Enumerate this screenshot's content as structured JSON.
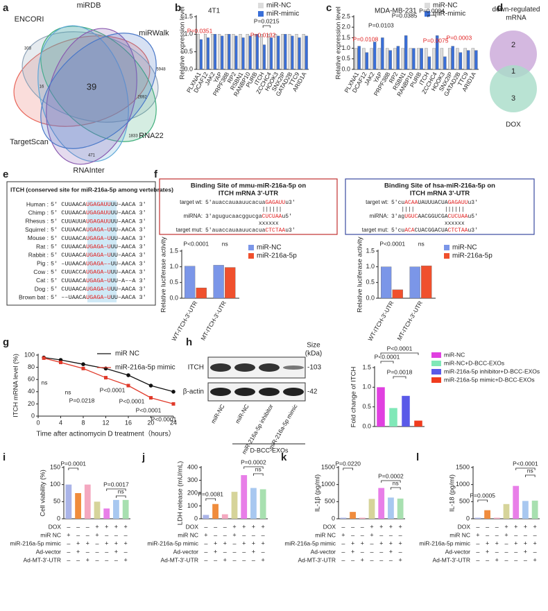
{
  "panel_letters": [
    "a",
    "b",
    "c",
    "d",
    "e",
    "f",
    "g",
    "h",
    "i",
    "j",
    "k",
    "l"
  ],
  "venn_a": {
    "sets": [
      "ENCORI",
      "miRDB",
      "miRWalk",
      "TargetScan",
      "RNAInter",
      "RNA22"
    ],
    "colors": [
      "#e8665a",
      "#8fa3b8",
      "#3fae7a",
      "#5fa8d8",
      "#8a5bb0",
      "#4a78c8"
    ],
    "center": 39,
    "counts": [
      303,
      5948,
      2692,
      1833,
      471,
      16
    ]
  },
  "venn_d": {
    "title_lines": [
      "down-regulated",
      "mRNA"
    ],
    "label": "DOX",
    "counts": [
      2,
      1,
      3
    ],
    "colors": [
      "#c9a6d8",
      "#a8dcc8"
    ]
  },
  "alignment_e": {
    "title": "ITCH (conserved site for miR-216a-5p among vertebrates)",
    "rows": [
      {
        "species": "Human :",
        "parts": [
          "5' CUUAACA",
          "UGAGAUU",
          "UU–AACA 3'"
        ]
      },
      {
        "species": "Chimp :",
        "parts": [
          "5' CUUAACA",
          "UGAGAUU",
          "UU–AACA 3'"
        ]
      },
      {
        "species": "Rhesus :",
        "parts": [
          "5' CUUAUUA",
          "UGAGAUU",
          "UU–AACA 3'"
        ]
      },
      {
        "species": "Squirrel :",
        "parts": [
          "5' CUUAACA",
          "UGAGA–U",
          "UU–AACA 3'"
        ]
      },
      {
        "species": "Mouse :",
        "parts": [
          "5' CUUAACA",
          "UGAGA–U",
          "UU–AACA 3'"
        ]
      },
      {
        "species": "Rat :",
        "parts": [
          "5' CUUAACA",
          "UGAGA–U",
          "UU–AACA 3'"
        ]
      },
      {
        "species": "Rabbit :",
        "parts": [
          "5' CUUAACA",
          "UGAGA–U",
          "UU–AACA 3'"
        ]
      },
      {
        "species": "Pig :",
        "parts": [
          "5' –UUAACA",
          "UGAGA––",
          "UU–AACA 3'"
        ]
      },
      {
        "species": "Cow :",
        "parts": [
          "5' CUUACCA",
          "UGAGA–U",
          "UU–AACA 3'"
        ]
      },
      {
        "species": "Cat :",
        "parts": [
          "5' CUUAACA",
          "UGAGA–U",
          "UU–A––A 3'"
        ]
      },
      {
        "species": "Dog :",
        "parts": [
          "5' CUUAACA",
          "UGAGA–U",
          "UU–AACA 3'"
        ]
      },
      {
        "species": "Brown bat :",
        "parts": [
          "5' ––UAACA",
          "UGAGA–U",
          "UU–AACA 3'"
        ]
      }
    ]
  },
  "binding_f": [
    {
      "title_lines": [
        "Binding Site of mmu-miR-216a-5p on",
        "ITCH mRNA 3'-UTR"
      ],
      "rows": [
        {
          "label": "target wt:",
          "parts": [
            "5'auaccauaauucacua",
            "GAGAUU",
            "u3'"
          ]
        },
        {
          "label": "",
          "parts": [
            "                 ||||||"
          ]
        },
        {
          "label": "miRNA:",
          "parts": [
            "3'agugucaacggucga",
            "CUCUAA",
            "u5'"
          ]
        },
        {
          "label": "",
          "parts": [
            "                xxxxxx"
          ]
        },
        {
          "label": "target mut:",
          "parts": [
            "5'auaccauaauucacua",
            "CTCTAA",
            "u3'"
          ]
        }
      ]
    },
    {
      "title_lines": [
        "Binding Site of hsa-miR-216a-5p on",
        "ITCH mRNA 3'-UTR"
      ],
      "rows": [
        {
          "label": "target wt:",
          "parts": [
            "5'cu",
            "ACAA",
            "UAUUUACUA",
            "GAGAUU",
            "u3'"
          ]
        },
        {
          "label": "",
          "parts": [
            "   ||||         ||||||"
          ]
        },
        {
          "label": "miRNA:",
          "parts": [
            "3'ag",
            "UGUC",
            "AACGGUCGA",
            "CUCUAA",
            "u5'"
          ]
        },
        {
          "label": "",
          "parts": [
            "                xxxxxx"
          ]
        },
        {
          "label": "target mut:",
          "parts": [
            "5'cu",
            "ACA",
            "CUACGGACUA",
            "CTCTAA",
            "u3'"
          ]
        }
      ]
    }
  ],
  "blot_h": {
    "rows": [
      "ITCH",
      "β-actin"
    ],
    "sizes": [
      "-103",
      "-42"
    ],
    "size_title_lines": [
      "Size",
      "(kDa)"
    ],
    "lanes": [
      "miR-NC",
      "miR-NC",
      "miR-216a-5p inhibitor",
      "miR-216a-5p mimic"
    ],
    "group": "D-BCC-EXOs"
  },
  "chart_data": [
    {
      "type": "bar",
      "title": "4T1",
      "ylabel": "Relative expression level",
      "categories": [
        "PLXNA1",
        "DCAF12",
        "JAK2",
        "YAP",
        "PRPF38B",
        "RP2",
        "RSBN1",
        "RANBP10",
        "PURB",
        "ITCH",
        "ZCCHC4",
        "HOOK3",
        "SNX2IP",
        "GATAD2B",
        "TTC9",
        "ARID1A"
      ],
      "series": [
        {
          "name": "miR-NC",
          "color": "#dcdcdc",
          "values": [
            1,
            1,
            1,
            1,
            1,
            1,
            1,
            1,
            1,
            1,
            1,
            1,
            1,
            1,
            1,
            1
          ]
        },
        {
          "name": "miR-mimic",
          "color": "#3a6fd8",
          "values": [
            0.85,
            0.9,
            1.0,
            0.95,
            1.0,
            0.95,
            0.9,
            0.95,
            1.0,
            0.7,
            0.9,
            0.95,
            1.0,
            0.95,
            0.9,
            0.95
          ]
        }
      ],
      "ylim": [
        0,
        1.5
      ],
      "yticks": [
        {
          "value": 0,
          "label": "0.0"
        },
        0.5,
        {
          "value": 1,
          "label": "1.0"
        },
        1.5
      ],
      "annotations": [
        {
          "text": "P=0.0351",
          "color": "#e02020"
        },
        {
          "text": "P=0.0132",
          "color": "#e02020"
        },
        {
          "text": "P=0.0215",
          "color": "#222222"
        }
      ]
    },
    {
      "type": "bar",
      "title": "MDA-MB-231",
      "ylabel": "Relative expression level",
      "categories": [
        "PLXNA1",
        "DCAF12",
        "JAK2",
        "YAP",
        "PRPF38B",
        "RP2",
        "RSBN1",
        "RANBP10",
        "PURB",
        "ITCH",
        "ZCCHC4",
        "HOOK3",
        "SNX2IP",
        "GATAD2B",
        "TTC9",
        "ARID1A"
      ],
      "series": [
        {
          "name": "miR-NC",
          "color": "#dcdcdc",
          "values": [
            1,
            1,
            1,
            1,
            1,
            1,
            1,
            1,
            1,
            1,
            1,
            1,
            1,
            1,
            1,
            1
          ]
        },
        {
          "name": "miR-mimic",
          "color": "#3a6fd8",
          "values": [
            1.1,
            0.8,
            1.3,
            1.5,
            0.9,
            1.1,
            1.6,
            1.0,
            1.0,
            0.6,
            1.6,
            0.6,
            1.1,
            0.8,
            0.9,
            0.9
          ]
        }
      ],
      "ylim": [
        0,
        2.5
      ],
      "yticks": [
        {
          "value": 0,
          "label": "0.0"
        },
        0.5,
        {
          "value": 1,
          "label": "1.0"
        },
        1.5,
        {
          "value": 2,
          "label": "2.0"
        },
        2.5
      ],
      "annotations": [
        {
          "text": "P=0.0108",
          "color": "#e02020"
        },
        {
          "text": "P=0.0103",
          "color": "#222222"
        },
        {
          "text": "P=0.0385",
          "color": "#222222"
        },
        {
          "text": "P=0.0004",
          "color": "#222222"
        },
        {
          "text": "P=0.0075",
          "color": "#e02020"
        },
        {
          "text": "P=0.0003",
          "color": "#e02020"
        }
      ]
    },
    {
      "type": "bar",
      "ylabel": "Relative luciferase activity",
      "categories": [
        "WT-ITCH-3'-UTR",
        "MT-ITCH-3'-UTR"
      ],
      "series": [
        {
          "name": "miR-NC",
          "color": "#7b96e8",
          "values": [
            1.02,
            1.05
          ]
        },
        {
          "name": "miR-216a-5p",
          "color": "#f0502d",
          "values": [
            0.33,
            0.98
          ]
        }
      ],
      "ylim": [
        0,
        1.5
      ],
      "yticks": [
        {
          "value": 0,
          "label": "0.0"
        },
        0.5,
        {
          "value": 1,
          "label": "1.0"
        },
        1.5
      ],
      "annotations": [
        {
          "text": "P<0.0001",
          "color": "#222222"
        },
        {
          "text": "ns",
          "color": "#222222"
        }
      ]
    },
    {
      "type": "bar",
      "ylabel": "Relative luciferase activity",
      "categories": [
        "WT-ITCH-3'-UTR",
        "MT-ITCH-3'-UTR"
      ],
      "series": [
        {
          "name": "miR-NC",
          "color": "#7b96e8",
          "values": [
            1.0,
            1.0
          ]
        },
        {
          "name": "miR-216a-5p",
          "color": "#f0502d",
          "values": [
            0.27,
            1.03
          ]
        }
      ],
      "ylim": [
        0,
        1.5
      ],
      "yticks": [
        {
          "value": 0,
          "label": "0.0"
        },
        0.5,
        {
          "value": 1,
          "label": "1.0"
        },
        1.5
      ],
      "annotations": [
        {
          "text": "P<0.0001",
          "color": "#222222"
        },
        {
          "text": "ns",
          "color": "#222222"
        }
      ]
    },
    {
      "type": "line",
      "ylabel": "ITCH mRNA  level (%)",
      "xlabel": "Time after actinomycin D treatment（hours）",
      "x": [
        1,
        4,
        8,
        12,
        16,
        20,
        24
      ],
      "series": [
        {
          "name": "miR NC",
          "color": "#111111",
          "values": [
            96,
            92,
            85,
            78,
            67,
            50,
            40
          ]
        },
        {
          "name": "miR-216a-5p mimic",
          "color": "#e03a2a",
          "values": [
            95,
            88,
            78,
            63,
            50,
            30,
            20
          ]
        }
      ],
      "xlim": [
        0,
        24
      ],
      "xticks": [
        0,
        4,
        8,
        12,
        16,
        20,
        24
      ],
      "ylim": [
        0,
        100
      ],
      "yticks": [
        0,
        20,
        40,
        60,
        80,
        100
      ],
      "annotations": [
        {
          "text": "ns",
          "color": "#222222"
        },
        {
          "text": "ns",
          "color": "#222222"
        },
        {
          "text": "P=0.0218",
          "color": "#222222"
        },
        {
          "text": "P<0.0001",
          "color": "#222222"
        },
        {
          "text": "P<0.0001",
          "color": "#222222"
        },
        {
          "text": "P<0.0001",
          "color": "#222222"
        },
        {
          "text": "P<0.0001",
          "color": "#222222"
        }
      ]
    },
    {
      "type": "bar",
      "ylabel": "Fold change of ITCH",
      "categories": [
        "miR-NC",
        "miR-NC+D-BCC-EXOs",
        "miR-216a-5p inhibitor+D-BCC-EXOs",
        "miR-216a-5p mimic+D-BCC-EXOs"
      ],
      "colors": [
        "#e040e0",
        "#80e8b8",
        "#5a5ae8",
        "#f03c1e"
      ],
      "values": [
        1.0,
        0.47,
        0.78,
        0.15
      ],
      "ylim": [
        0,
        1.5
      ],
      "yticks": [
        {
          "value": 0,
          "label": "0.0"
        },
        0.5,
        {
          "value": 1,
          "label": "1.0"
        },
        1.5
      ],
      "annotations": [
        {
          "text": "P<0.0001",
          "color": "#222222"
        },
        {
          "text": "P=0.0018",
          "color": "#222222"
        },
        {
          "text": "P<0.0001",
          "color": "#222222"
        }
      ]
    },
    {
      "type": "bar",
      "ylabel": "Cell viability (%)",
      "colors": [
        "#aab4e8",
        "#f08c3c",
        "#f4a8c0",
        "#d6d49a",
        "#e87ee8",
        "#a8c8f0",
        "#a8e0b0"
      ],
      "values": [
        100,
        75,
        100,
        50,
        30,
        55,
        55
      ],
      "ylim": [
        0,
        150
      ],
      "yticks": [
        0,
        50,
        100,
        150
      ],
      "annotations": [
        {
          "text": "P=0.0001",
          "color": "#222222"
        },
        {
          "text": "P=0.0017",
          "color": "#222222"
        },
        {
          "text": "ns",
          "color": "#222222"
        }
      ]
    },
    {
      "type": "bar",
      "ylabel": "LDH release (mU/mL)",
      "colors": [
        "#aab4e8",
        "#f08c3c",
        "#f4a8c0",
        "#d6d49a",
        "#e87ee8",
        "#a8c8f0",
        "#a8e0b0"
      ],
      "values": [
        30,
        115,
        35,
        210,
        340,
        240,
        230
      ],
      "ylim": [
        0,
        400
      ],
      "yticks": [
        0,
        100,
        200,
        300,
        400
      ],
      "annotations": [
        {
          "text": "P=0.0081",
          "color": "#222222"
        },
        {
          "text": "P=0.0002",
          "color": "#222222"
        },
        {
          "text": "ns",
          "color": "#222222"
        }
      ]
    },
    {
      "type": "bar",
      "ylabel": "IL-1β (pg/ml)",
      "colors": [
        "#aab4e8",
        "#f08c3c",
        "#f4a8c0",
        "#d6d49a",
        "#e87ee8",
        "#a8c8f0",
        "#a8e0b0"
      ],
      "values": [
        30,
        200,
        30,
        580,
        900,
        620,
        590
      ],
      "ylim": [
        0,
        1500
      ],
      "yticks": [
        0,
        500,
        1000,
        1500
      ],
      "annotations": [
        {
          "text": "P=0.0220",
          "color": "#222222"
        },
        {
          "text": "P=0.0002",
          "color": "#222222"
        },
        {
          "text": "ns",
          "color": "#222222"
        }
      ]
    },
    {
      "type": "bar",
      "ylabel": "IL-18 (pg/ml)",
      "colors": [
        "#aab4e8",
        "#f08c3c",
        "#f4a8c0",
        "#d6d49a",
        "#e87ee8",
        "#a8c8f0",
        "#a8e0b0"
      ],
      "values": [
        30,
        250,
        30,
        430,
        960,
        520,
        530
      ],
      "ylim": [
        0,
        1500
      ],
      "yticks": [
        0,
        500,
        1000,
        1500
      ],
      "annotations": [
        {
          "text": "P=0.0005",
          "color": "#222222"
        },
        {
          "text": "P<0.0001",
          "color": "#222222"
        },
        {
          "text": "ns",
          "color": "#222222"
        }
      ]
    }
  ],
  "conditions": [
    {
      "label": "DOX",
      "signs": [
        "–",
        "–",
        "–",
        "+",
        "+",
        "+",
        "+"
      ]
    },
    {
      "label": "miR NC",
      "signs": [
        "+",
        "–",
        "–",
        "+",
        "–",
        "–",
        "–"
      ]
    },
    {
      "label": "miR-216a-5p mimic",
      "signs": [
        "–",
        "+",
        "+",
        "–",
        "+",
        "+",
        "+"
      ]
    },
    {
      "label": "Ad-vector",
      "signs": [
        "–",
        "+",
        "–",
        "–",
        "–",
        "+",
        "–"
      ]
    },
    {
      "label": "Ad-MT-3'-UTR",
      "signs": [
        "–",
        "–",
        "+",
        "–",
        "–",
        "–",
        "+"
      ]
    }
  ]
}
